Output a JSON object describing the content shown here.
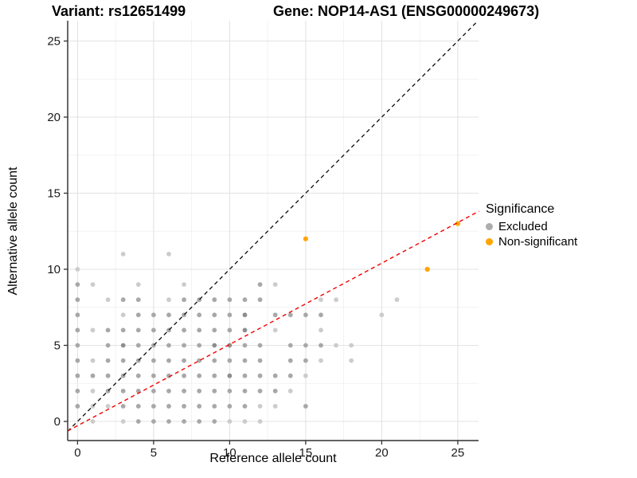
{
  "header": {
    "variant_title": "Variant: rs12651499",
    "gene_title": "Gene: NOP14-AS1 (ENSG00000249673)"
  },
  "axes": {
    "x_label": "Reference allele count",
    "y_label": "Alternative allele count"
  },
  "legend": {
    "title": "Significance",
    "items": [
      {
        "label": "Excluded",
        "color": "#adadad"
      },
      {
        "label": "Non-significant",
        "color": "#ffa500"
      }
    ]
  },
  "chart_data": {
    "type": "scatter",
    "title": "Variant: rs12651499 | Gene: NOP14-AS1 (ENSG00000249673)",
    "xlabel": "Reference allele count",
    "ylabel": "Alternative allele count",
    "xlim": [
      -0.65,
      26.4
    ],
    "ylim": [
      -1.26,
      26.3
    ],
    "x_ticks": [
      0,
      5,
      10,
      15,
      20,
      25
    ],
    "y_ticks": [
      0,
      5,
      10,
      15,
      20,
      25
    ],
    "grid": {
      "major": [
        0,
        5,
        10,
        15,
        20,
        25
      ],
      "minor": [
        2.5,
        7.5,
        12.5,
        17.5,
        22.5
      ],
      "major_color": "#e3e3e3",
      "minor_color": "#efefef"
    },
    "shade_colors": {
      "l": "#cccccc",
      "m": "#a8a8a8",
      "d": "#8e8e8e"
    },
    "series": [
      {
        "name": "Excluded",
        "points": [
          [
            1,
            0,
            "l"
          ],
          [
            3,
            0,
            "l"
          ],
          [
            4,
            0,
            "m"
          ],
          [
            5,
            0,
            "m"
          ],
          [
            6,
            0,
            "m"
          ],
          [
            7,
            0,
            "m"
          ],
          [
            8,
            0,
            "m"
          ],
          [
            9,
            0,
            "m"
          ],
          [
            10,
            0,
            "l"
          ],
          [
            11,
            0,
            "l"
          ],
          [
            12,
            0,
            "l"
          ],
          [
            0,
            1,
            "m"
          ],
          [
            1,
            1,
            "l"
          ],
          [
            2,
            1,
            "l"
          ],
          [
            3,
            1,
            "m"
          ],
          [
            4,
            1,
            "m"
          ],
          [
            5,
            1,
            "m"
          ],
          [
            6,
            1,
            "m"
          ],
          [
            7,
            1,
            "m"
          ],
          [
            8,
            1,
            "m"
          ],
          [
            9,
            1,
            "m"
          ],
          [
            10,
            1,
            "m"
          ],
          [
            11,
            1,
            "m"
          ],
          [
            12,
            1,
            "l"
          ],
          [
            13,
            1,
            "l"
          ],
          [
            15,
            1,
            "m"
          ],
          [
            0,
            2,
            "m"
          ],
          [
            1,
            2,
            "l"
          ],
          [
            2,
            2,
            "m"
          ],
          [
            3,
            2,
            "m"
          ],
          [
            4,
            2,
            "m"
          ],
          [
            5,
            2,
            "m"
          ],
          [
            6,
            2,
            "m"
          ],
          [
            7,
            2,
            "m"
          ],
          [
            8,
            2,
            "m"
          ],
          [
            9,
            2,
            "m"
          ],
          [
            10,
            2,
            "m"
          ],
          [
            11,
            2,
            "m"
          ],
          [
            12,
            2,
            "m"
          ],
          [
            13,
            2,
            "m"
          ],
          [
            14,
            2,
            "l"
          ],
          [
            0,
            3,
            "m"
          ],
          [
            1,
            3,
            "m"
          ],
          [
            2,
            3,
            "m"
          ],
          [
            3,
            3,
            "m"
          ],
          [
            4,
            3,
            "m"
          ],
          [
            5,
            3,
            "m"
          ],
          [
            6,
            3,
            "m"
          ],
          [
            7,
            3,
            "m"
          ],
          [
            8,
            3,
            "m"
          ],
          [
            9,
            3,
            "m"
          ],
          [
            10,
            3,
            "d"
          ],
          [
            11,
            3,
            "m"
          ],
          [
            12,
            3,
            "m"
          ],
          [
            13,
            3,
            "m"
          ],
          [
            14,
            3,
            "m"
          ],
          [
            15,
            3,
            "l"
          ],
          [
            0,
            4,
            "m"
          ],
          [
            1,
            4,
            "l"
          ],
          [
            2,
            4,
            "m"
          ],
          [
            3,
            4,
            "m"
          ],
          [
            4,
            4,
            "m"
          ],
          [
            5,
            4,
            "m"
          ],
          [
            6,
            4,
            "m"
          ],
          [
            7,
            4,
            "m"
          ],
          [
            8,
            4,
            "m"
          ],
          [
            9,
            4,
            "m"
          ],
          [
            10,
            4,
            "m"
          ],
          [
            11,
            4,
            "m"
          ],
          [
            12,
            4,
            "m"
          ],
          [
            14,
            4,
            "m"
          ],
          [
            15,
            4,
            "m"
          ],
          [
            16,
            4,
            "l"
          ],
          [
            18,
            4,
            "l"
          ],
          [
            0,
            5,
            "m"
          ],
          [
            2,
            5,
            "m"
          ],
          [
            3,
            5,
            "d"
          ],
          [
            4,
            5,
            "m"
          ],
          [
            5,
            5,
            "m"
          ],
          [
            6,
            5,
            "m"
          ],
          [
            7,
            5,
            "m"
          ],
          [
            8,
            5,
            "m"
          ],
          [
            9,
            5,
            "d"
          ],
          [
            10,
            5,
            "d"
          ],
          [
            11,
            5,
            "m"
          ],
          [
            12,
            5,
            "m"
          ],
          [
            14,
            5,
            "m"
          ],
          [
            15,
            5,
            "m"
          ],
          [
            16,
            5,
            "m"
          ],
          [
            17,
            5,
            "l"
          ],
          [
            18,
            5,
            "l"
          ],
          [
            0,
            6,
            "m"
          ],
          [
            1,
            6,
            "l"
          ],
          [
            2,
            6,
            "m"
          ],
          [
            3,
            6,
            "m"
          ],
          [
            4,
            6,
            "m"
          ],
          [
            5,
            6,
            "m"
          ],
          [
            6,
            6,
            "m"
          ],
          [
            7,
            6,
            "m"
          ],
          [
            8,
            6,
            "m"
          ],
          [
            9,
            6,
            "m"
          ],
          [
            10,
            6,
            "m"
          ],
          [
            11,
            6,
            "d"
          ],
          [
            13,
            6,
            "l"
          ],
          [
            16,
            6,
            "l"
          ],
          [
            0,
            7,
            "m"
          ],
          [
            3,
            7,
            "l"
          ],
          [
            4,
            7,
            "m"
          ],
          [
            5,
            7,
            "m"
          ],
          [
            6,
            7,
            "m"
          ],
          [
            7,
            7,
            "m"
          ],
          [
            8,
            7,
            "m"
          ],
          [
            9,
            7,
            "m"
          ],
          [
            10,
            7,
            "m"
          ],
          [
            11,
            7,
            "d"
          ],
          [
            13,
            7,
            "m"
          ],
          [
            14,
            7,
            "m"
          ],
          [
            15,
            7,
            "m"
          ],
          [
            16,
            7,
            "m"
          ],
          [
            20,
            7,
            "l"
          ],
          [
            0,
            8,
            "m"
          ],
          [
            2,
            8,
            "l"
          ],
          [
            3,
            8,
            "m"
          ],
          [
            4,
            8,
            "m"
          ],
          [
            6,
            8,
            "l"
          ],
          [
            7,
            8,
            "m"
          ],
          [
            8,
            8,
            "m"
          ],
          [
            9,
            8,
            "m"
          ],
          [
            10,
            8,
            "m"
          ],
          [
            11,
            8,
            "m"
          ],
          [
            12,
            8,
            "m"
          ],
          [
            16,
            8,
            "l"
          ],
          [
            17,
            8,
            "l"
          ],
          [
            21,
            8,
            "l"
          ],
          [
            0,
            9,
            "m"
          ],
          [
            1,
            9,
            "l"
          ],
          [
            4,
            9,
            "l"
          ],
          [
            7,
            9,
            "l"
          ],
          [
            12,
            9,
            "m"
          ],
          [
            13,
            9,
            "l"
          ],
          [
            0,
            10,
            "l"
          ],
          [
            3,
            11,
            "l"
          ],
          [
            6,
            11,
            "l"
          ]
        ]
      },
      {
        "name": "Non-significant",
        "color": "#ffa500",
        "points": [
          [
            15,
            12
          ],
          [
            23,
            10
          ],
          [
            25,
            13
          ]
        ]
      }
    ],
    "lines": [
      {
        "name": "identity",
        "color": "#1a1a1a",
        "dash": "5,4",
        "slope": 1,
        "intercept": 0
      },
      {
        "name": "fit",
        "color": "#f40000",
        "dash": "5,4",
        "slope": 0.534,
        "intercept": -0.28
      }
    ],
    "axis": {
      "line_color": "#4d4d4d",
      "tick_color": "#333333",
      "tick_label_color": "#1a1a1a",
      "tick_label_size": 15
    }
  }
}
